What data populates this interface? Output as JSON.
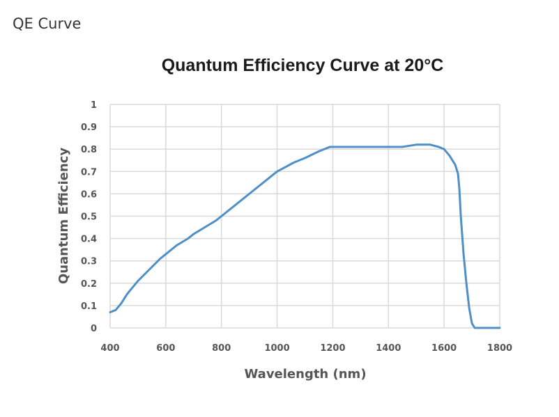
{
  "page": {
    "heading": "QE Curve"
  },
  "chart_data": {
    "type": "line",
    "title": "Quantum Efficiency Curve at 20°C",
    "xlabel": "Wavelength (nm)",
    "ylabel": "Quantum Efficiency",
    "xlim": [
      400,
      1800
    ],
    "ylim": [
      0,
      1
    ],
    "xticks": [
      400,
      600,
      800,
      1000,
      1200,
      1400,
      1600,
      1800
    ],
    "yticks": [
      0,
      0.1,
      0.2,
      0.3,
      0.4,
      0.5,
      0.6,
      0.7,
      0.8,
      0.9,
      1
    ],
    "xtick_labels": [
      "400",
      "600",
      "800",
      "1000",
      "1200",
      "1400",
      "1600",
      "1800"
    ],
    "ytick_labels": [
      "0",
      "0.1",
      "0.2",
      "0.3",
      "0.4",
      "0.5",
      "0.6",
      "0.7",
      "0.8",
      "0.9",
      "1"
    ],
    "grid": true,
    "legend": "none",
    "line_color": "#4f8fc8",
    "grid_color": "#d9d9d9",
    "series": [
      {
        "x": [
          400,
          420,
          440,
          460,
          480,
          500,
          540,
          580,
          600,
          640,
          680,
          700,
          740,
          780,
          800,
          840,
          880,
          920,
          950,
          980,
          1000,
          1030,
          1060,
          1100,
          1150,
          1190,
          1220,
          1260,
          1300,
          1350,
          1400,
          1450,
          1500,
          1550,
          1580,
          1600,
          1620,
          1630,
          1640,
          1650,
          1655,
          1660,
          1670,
          1680,
          1690,
          1700,
          1710,
          1750,
          1800
        ],
        "y": [
          0.07,
          0.08,
          0.11,
          0.15,
          0.18,
          0.21,
          0.26,
          0.31,
          0.33,
          0.37,
          0.4,
          0.42,
          0.45,
          0.48,
          0.5,
          0.54,
          0.58,
          0.62,
          0.65,
          0.68,
          0.7,
          0.72,
          0.74,
          0.76,
          0.79,
          0.81,
          0.81,
          0.81,
          0.81,
          0.81,
          0.81,
          0.81,
          0.82,
          0.82,
          0.81,
          0.8,
          0.77,
          0.75,
          0.73,
          0.69,
          0.62,
          0.5,
          0.33,
          0.2,
          0.09,
          0.02,
          0.0,
          0.0,
          0.0
        ]
      }
    ]
  }
}
